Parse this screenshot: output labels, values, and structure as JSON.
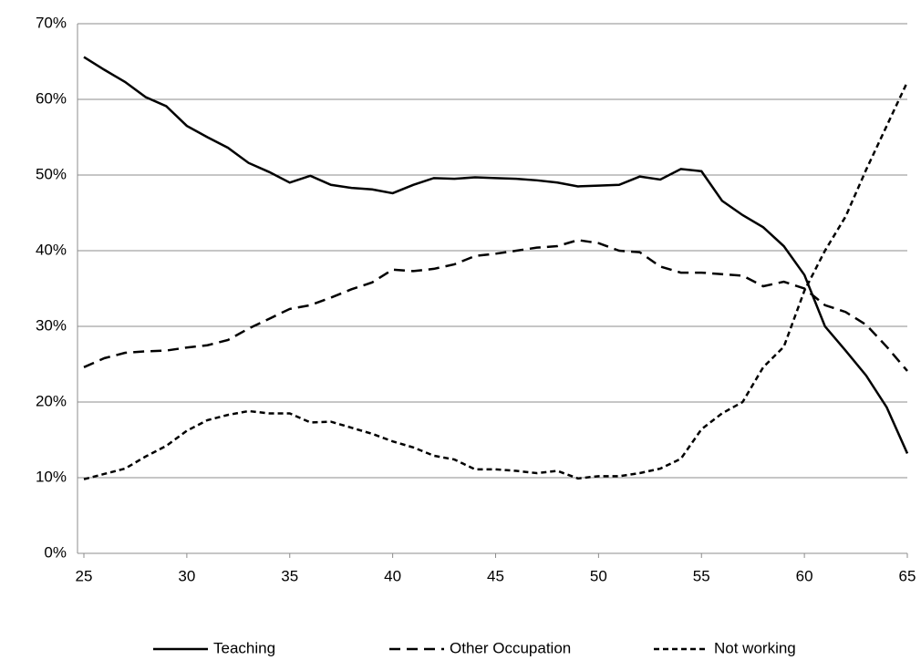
{
  "chart_data": {
    "type": "line",
    "x": [
      25,
      26,
      27,
      28,
      29,
      30,
      31,
      32,
      33,
      34,
      35,
      36,
      37,
      38,
      39,
      40,
      41,
      42,
      43,
      44,
      45,
      46,
      47,
      48,
      49,
      50,
      51,
      52,
      53,
      54,
      55,
      56,
      57,
      58,
      59,
      60,
      61,
      62,
      63,
      64,
      65
    ],
    "series": [
      {
        "name": "Teaching",
        "color": "#000000",
        "dash": "solid",
        "values": [
          65.6,
          63.9,
          62.3,
          60.3,
          59.1,
          56.5,
          55.0,
          53.6,
          51.6,
          50.4,
          49.0,
          49.9,
          48.7,
          48.3,
          48.1,
          47.6,
          48.7,
          49.6,
          49.5,
          49.7,
          49.6,
          49.5,
          49.3,
          49.0,
          48.5,
          48.6,
          48.7,
          49.8,
          49.4,
          50.8,
          50.5,
          46.6,
          44.7,
          43.1,
          40.6,
          36.8,
          30.0,
          26.8,
          23.5,
          19.3,
          13.2
        ]
      },
      {
        "name": "Other Occupation",
        "color": "#000000",
        "dash": "dashed",
        "values": [
          24.6,
          25.8,
          26.5,
          26.7,
          26.8,
          27.2,
          27.5,
          28.2,
          29.7,
          31.0,
          32.3,
          32.8,
          33.8,
          34.9,
          35.8,
          37.5,
          37.3,
          37.6,
          38.2,
          39.3,
          39.6,
          40.0,
          40.4,
          40.6,
          41.4,
          41.0,
          40.0,
          39.8,
          37.9,
          37.1,
          37.1,
          36.9,
          36.7,
          35.3,
          35.9,
          35.0,
          32.8,
          31.9,
          30.2,
          27.3,
          24.1
        ]
      },
      {
        "name": "Not working",
        "color": "#000000",
        "dash": "dotted",
        "values": [
          9.8,
          10.5,
          11.2,
          12.8,
          14.2,
          16.2,
          17.6,
          18.3,
          18.8,
          18.5,
          18.5,
          17.3,
          17.4,
          16.6,
          15.8,
          14.8,
          14.0,
          12.9,
          12.4,
          11.1,
          11.1,
          10.9,
          10.6,
          10.9,
          9.9,
          10.2,
          10.2,
          10.6,
          11.2,
          12.5,
          16.4,
          18.5,
          20.0,
          24.6,
          27.3,
          34.7,
          40.0,
          44.5,
          50.7,
          56.5,
          62.3
        ]
      }
    ],
    "xlim": [
      25,
      65
    ],
    "xticks": [
      25,
      30,
      35,
      40,
      45,
      50,
      55,
      60,
      65
    ],
    "ylim": [
      0,
      70
    ],
    "yticks": [
      {
        "value": 0,
        "label": "0%"
      },
      {
        "value": 10,
        "label": "10%"
      },
      {
        "value": 20,
        "label": "20%"
      },
      {
        "value": 30,
        "label": "30%"
      },
      {
        "value": 40,
        "label": "40%"
      },
      {
        "value": 50,
        "label": "50%"
      },
      {
        "value": 60,
        "label": "60%"
      },
      {
        "value": 70,
        "label": "70%"
      }
    ],
    "grid": true,
    "legend": "bottom"
  }
}
